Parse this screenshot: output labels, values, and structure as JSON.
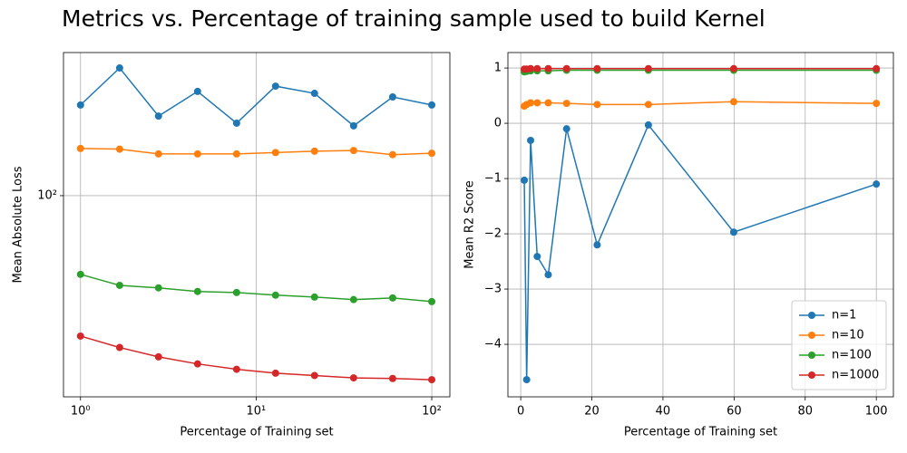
{
  "title": "Metrics vs. Percentage of training sample used to build Kernel",
  "chart_data": [
    {
      "type": "line",
      "xlabel": "Percentage of Training set",
      "ylabel": "Mean Absolute Loss",
      "xscale": "log",
      "yscale": "log",
      "grid": true,
      "x": [
        1,
        1.67,
        2.78,
        4.64,
        7.74,
        12.9,
        21.5,
        35.9,
        59.9,
        100
      ],
      "xlim": [
        0.8,
        126.8
      ],
      "ylim": [
        14.6,
        393
      ],
      "xticks": [
        {
          "value": 1,
          "label": "10⁰"
        },
        {
          "value": 10,
          "label": "10¹"
        },
        {
          "value": 100,
          "label": "10²"
        }
      ],
      "yticks": [
        {
          "value": 100,
          "label": "10²"
        }
      ],
      "series": [
        {
          "color": "#1f77b4",
          "values": [
            238,
            339,
            214,
            271,
            200,
            285,
            266,
            195,
            257,
            238
          ]
        },
        {
          "color": "#ff7f0e",
          "values": [
            157,
            156,
            149,
            149,
            149,
            151,
            153,
            154,
            148,
            150
          ]
        },
        {
          "color": "#2ca02c",
          "values": [
            47.1,
            42.4,
            41.4,
            40.0,
            39.6,
            38.6,
            37.9,
            37.0,
            37.6,
            36.3
          ]
        },
        {
          "color": "#d62728",
          "values": [
            26.1,
            23.4,
            21.4,
            20.0,
            19.0,
            18.3,
            17.9,
            17.5,
            17.4,
            17.2
          ]
        }
      ]
    },
    {
      "type": "line",
      "xlabel": "Percentage of Training set",
      "ylabel": "Mean R2 Score",
      "grid": true,
      "legend": "lower right",
      "x": [
        1,
        1.67,
        2.78,
        4.64,
        7.74,
        12.9,
        21.5,
        35.9,
        59.9,
        100
      ],
      "xlim": [
        -3.6,
        104.8
      ],
      "ylim": [
        -4.95,
        1.28
      ],
      "xticks": [
        0,
        20,
        40,
        60,
        80,
        100
      ],
      "yticks": [
        {
          "value": -4,
          "label": "−4"
        },
        {
          "value": -3,
          "label": "−3"
        },
        {
          "value": -2,
          "label": "−2"
        },
        {
          "value": -1,
          "label": "−1"
        },
        0,
        1
      ],
      "series": [
        {
          "name": "n=1",
          "color": "#1f77b4",
          "values": [
            -1.03,
            -4.64,
            -0.31,
            -2.41,
            -2.74,
            -0.1,
            -2.2,
            -0.03,
            -1.97,
            -1.1
          ]
        },
        {
          "name": "n=10",
          "color": "#ff7f0e",
          "values": [
            0.31,
            0.34,
            0.37,
            0.37,
            0.37,
            0.36,
            0.34,
            0.34,
            0.39,
            0.36
          ]
        },
        {
          "name": "n=100",
          "color": "#2ca02c",
          "values": [
            0.93,
            0.94,
            0.95,
            0.95,
            0.95,
            0.96,
            0.96,
            0.96,
            0.96,
            0.96
          ]
        },
        {
          "name": "n=1000",
          "color": "#d62728",
          "values": [
            0.98,
            0.98,
            0.99,
            0.99,
            0.99,
            0.99,
            0.99,
            0.99,
            0.99,
            0.99
          ]
        }
      ]
    }
  ]
}
